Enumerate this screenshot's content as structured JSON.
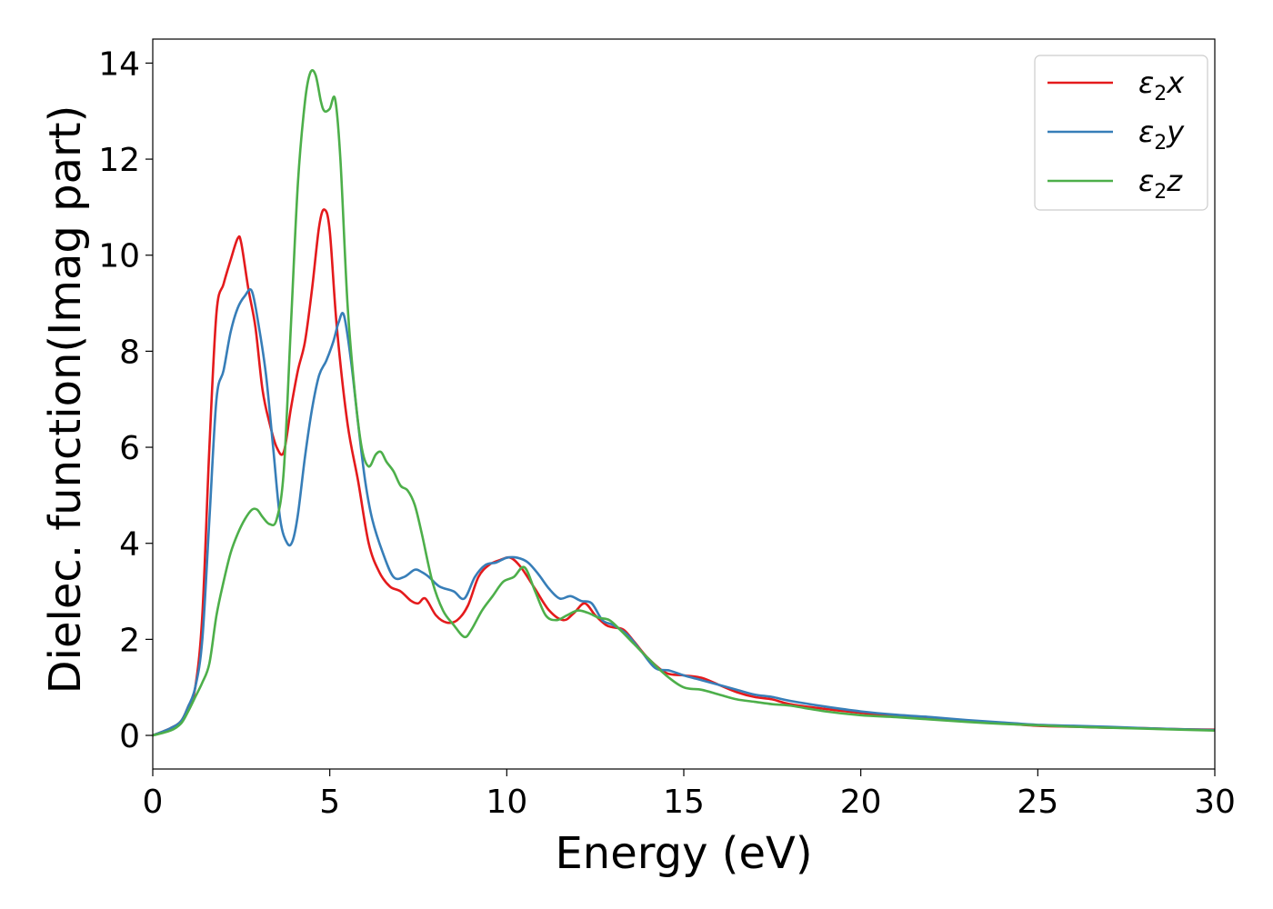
{
  "chart_data": {
    "type": "line",
    "xlabel": "Energy (eV)",
    "ylabel": "Dielec. function(Imag part)",
    "xlim": [
      0,
      30
    ],
    "ylim": [
      -0.7,
      14.5
    ],
    "xticks": [
      0,
      5,
      10,
      15,
      20,
      25,
      30
    ],
    "yticks": [
      0,
      2,
      4,
      6,
      8,
      10,
      12,
      14
    ],
    "grid": false,
    "legend_placement": "top-right",
    "series": [
      {
        "name": "ε2x",
        "label_base": "ε",
        "label_sub": "2",
        "label_var": "x",
        "color": "#e41a1c",
        "x": [
          0,
          0.5,
          0.8,
          1.0,
          1.2,
          1.4,
          1.6,
          1.8,
          2.0,
          2.2,
          2.4,
          2.5,
          2.7,
          2.9,
          3.1,
          3.3,
          3.5,
          3.7,
          3.9,
          4.1,
          4.3,
          4.5,
          4.7,
          4.85,
          5.0,
          5.2,
          5.5,
          5.8,
          6.1,
          6.4,
          6.7,
          7.0,
          7.3,
          7.5,
          7.7,
          8.0,
          8.3,
          8.6,
          8.9,
          9.2,
          9.5,
          9.8,
          10.1,
          10.4,
          10.8,
          11.2,
          11.6,
          11.9,
          12.2,
          12.5,
          12.8,
          13.0,
          13.3,
          13.6,
          14.0,
          14.5,
          15.0,
          15.5,
          16.0,
          16.5,
          17.0,
          17.5,
          18.0,
          19.0,
          20.0,
          21.0,
          22.0,
          23.0,
          24.0,
          25.0,
          26.0,
          27.0,
          28.0,
          29.0,
          30.0
        ],
        "y": [
          0,
          0.15,
          0.3,
          0.6,
          1.0,
          2.5,
          6.0,
          8.8,
          9.4,
          9.9,
          10.35,
          10.25,
          9.3,
          8.5,
          7.2,
          6.5,
          6.0,
          5.9,
          6.8,
          7.6,
          8.2,
          9.3,
          10.6,
          10.95,
          10.5,
          8.5,
          6.5,
          5.3,
          4.0,
          3.4,
          3.1,
          3.0,
          2.8,
          2.75,
          2.85,
          2.5,
          2.35,
          2.4,
          2.7,
          3.3,
          3.55,
          3.65,
          3.7,
          3.5,
          3.05,
          2.6,
          2.4,
          2.55,
          2.75,
          2.5,
          2.3,
          2.25,
          2.2,
          1.95,
          1.6,
          1.3,
          1.25,
          1.2,
          1.05,
          0.9,
          0.8,
          0.75,
          0.65,
          0.55,
          0.47,
          0.4,
          0.35,
          0.3,
          0.25,
          0.2,
          0.18,
          0.16,
          0.15,
          0.13,
          0.12
        ]
      },
      {
        "name": "ε2y",
        "label_base": "ε",
        "label_sub": "2",
        "label_var": "y",
        "color": "#377eb8",
        "x": [
          0,
          0.5,
          0.8,
          1.0,
          1.2,
          1.4,
          1.6,
          1.8,
          2.0,
          2.2,
          2.4,
          2.6,
          2.8,
          3.0,
          3.2,
          3.4,
          3.6,
          3.8,
          3.95,
          4.1,
          4.3,
          4.5,
          4.7,
          4.9,
          5.1,
          5.25,
          5.4,
          5.6,
          5.8,
          6.0,
          6.2,
          6.5,
          6.8,
          7.1,
          7.4,
          7.6,
          7.8,
          8.1,
          8.5,
          8.8,
          9.1,
          9.4,
          9.7,
          10.0,
          10.3,
          10.6,
          10.9,
          11.2,
          11.5,
          11.8,
          12.1,
          12.4,
          12.7,
          13.0,
          13.4,
          13.8,
          14.2,
          14.6,
          15.0,
          15.5,
          16.0,
          16.5,
          17.0,
          17.5,
          18.0,
          19.0,
          20.0,
          21.0,
          22.0,
          23.0,
          24.0,
          25.0,
          26.0,
          27.0,
          28.0,
          29.0,
          30.0
        ],
        "y": [
          0,
          0.15,
          0.3,
          0.6,
          1.0,
          2.0,
          4.5,
          7.0,
          7.6,
          8.4,
          8.9,
          9.15,
          9.25,
          8.5,
          7.5,
          6.0,
          4.5,
          4.0,
          4.05,
          4.6,
          5.8,
          6.8,
          7.5,
          7.8,
          8.2,
          8.6,
          8.75,
          7.8,
          6.5,
          5.3,
          4.5,
          3.8,
          3.3,
          3.3,
          3.45,
          3.4,
          3.3,
          3.1,
          3.0,
          2.85,
          3.3,
          3.55,
          3.6,
          3.7,
          3.7,
          3.6,
          3.35,
          3.05,
          2.85,
          2.9,
          2.8,
          2.75,
          2.4,
          2.3,
          2.1,
          1.75,
          1.4,
          1.35,
          1.25,
          1.15,
          1.05,
          0.95,
          0.85,
          0.8,
          0.72,
          0.6,
          0.5,
          0.43,
          0.38,
          0.32,
          0.27,
          0.22,
          0.2,
          0.18,
          0.15,
          0.13,
          0.11
        ]
      },
      {
        "name": "ε2z",
        "label_base": "ε",
        "label_sub": "2",
        "label_var": "z",
        "color": "#4daf4a",
        "x": [
          0,
          0.5,
          0.8,
          1.0,
          1.2,
          1.4,
          1.6,
          1.8,
          2.0,
          2.2,
          2.4,
          2.6,
          2.8,
          2.95,
          3.1,
          3.3,
          3.5,
          3.7,
          3.9,
          4.1,
          4.3,
          4.45,
          4.6,
          4.75,
          4.85,
          5.0,
          5.15,
          5.3,
          5.5,
          5.7,
          5.9,
          6.1,
          6.3,
          6.45,
          6.6,
          6.8,
          7.0,
          7.2,
          7.4,
          7.6,
          7.9,
          8.2,
          8.5,
          8.8,
          9.0,
          9.3,
          9.6,
          9.9,
          10.2,
          10.5,
          10.8,
          11.1,
          11.4,
          11.7,
          12.0,
          12.3,
          12.6,
          12.9,
          13.2,
          13.6,
          14.0,
          14.5,
          15.0,
          15.5,
          16.0,
          16.5,
          17.0,
          17.5,
          18.0,
          19.0,
          20.0,
          21.0,
          22.0,
          23.0,
          24.0,
          25.0,
          26.0,
          27.0,
          28.0,
          29.0,
          30.0
        ],
        "y": [
          0,
          0.1,
          0.25,
          0.5,
          0.8,
          1.1,
          1.5,
          2.5,
          3.2,
          3.8,
          4.2,
          4.5,
          4.7,
          4.7,
          4.55,
          4.4,
          4.5,
          5.5,
          8.5,
          11.5,
          13.2,
          13.8,
          13.75,
          13.2,
          13.0,
          13.05,
          13.25,
          12.0,
          9.0,
          7.2,
          6.0,
          5.6,
          5.85,
          5.9,
          5.7,
          5.5,
          5.2,
          5.1,
          4.8,
          4.2,
          3.2,
          2.6,
          2.3,
          2.05,
          2.2,
          2.6,
          2.9,
          3.2,
          3.3,
          3.5,
          3.0,
          2.5,
          2.4,
          2.5,
          2.6,
          2.55,
          2.45,
          2.4,
          2.2,
          1.9,
          1.6,
          1.25,
          1.0,
          0.95,
          0.85,
          0.75,
          0.7,
          0.65,
          0.62,
          0.5,
          0.42,
          0.38,
          0.33,
          0.28,
          0.24,
          0.21,
          0.18,
          0.16,
          0.14,
          0.12,
          0.1
        ]
      }
    ]
  }
}
